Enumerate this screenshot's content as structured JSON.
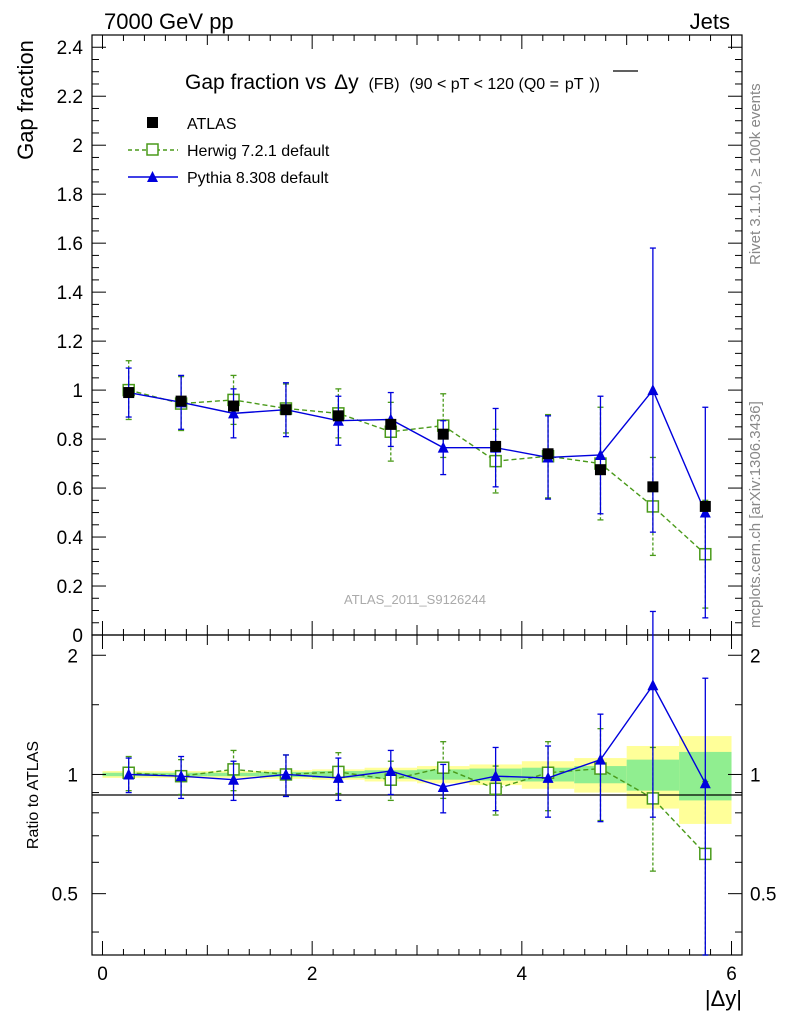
{
  "header": {
    "left": "7000 GeV pp",
    "right": "Jets"
  },
  "side_labels": {
    "rivet": "Rivet 3.1.10, ≥ 100k events",
    "mcplots": "mcplots.cern.ch [arXiv:1306.3436]"
  },
  "watermark": "ATLAS_2011_S9126244",
  "colors": {
    "atlas": "#000000",
    "herwig": "#4a9a1a",
    "pythia": "#0000dd",
    "band_inner": "#90ee90",
    "band_outer": "#ffff99"
  },
  "chart_data": [
    {
      "type": "scatter",
      "title_main": "Gap fraction vs",
      "title_delta": "Δy",
      "title_tag": "(FB)",
      "title_range": "(90 < pT < 120 (Q0 =",
      "title_q0": "pT",
      "title_close": "))",
      "ylabel": "Gap fraction",
      "ylim": [
        0,
        2.45
      ],
      "yticks": [
        "0",
        "0.2",
        "0.4",
        "0.6",
        "0.8",
        "1",
        "1.2",
        "1.4",
        "1.6",
        "1.8",
        "2",
        "2.2",
        "2.4"
      ],
      "x": [
        0.25,
        0.75,
        1.25,
        1.75,
        2.25,
        2.75,
        3.25,
        3.75,
        4.25,
        4.75,
        5.25,
        5.75
      ],
      "series": [
        {
          "name": "ATLAS",
          "values": [
            0.99,
            0.955,
            0.935,
            0.92,
            0.895,
            0.86,
            0.82,
            0.77,
            0.74,
            0.675,
            0.605,
            0.525
          ]
        },
        {
          "name": "Herwig 7.2.1 default",
          "values": [
            1.0,
            0.945,
            0.96,
            0.925,
            0.905,
            0.83,
            0.855,
            0.71,
            0.73,
            0.7,
            0.525,
            0.33
          ],
          "err": [
            0.12,
            0.11,
            0.1,
            0.1,
            0.1,
            0.12,
            0.13,
            0.13,
            0.17,
            0.23,
            0.2,
            0.22
          ]
        },
        {
          "name": "Pythia 8.308 default",
          "values": [
            0.99,
            0.95,
            0.905,
            0.92,
            0.875,
            0.88,
            0.765,
            0.765,
            0.725,
            0.735,
            1.0,
            0.5
          ],
          "err": [
            0.1,
            0.11,
            0.1,
            0.11,
            0.1,
            0.11,
            0.11,
            0.16,
            0.17,
            0.24,
            0.58,
            0.43
          ]
        }
      ]
    },
    {
      "type": "scatter",
      "ylabel": "Ratio to ATLAS",
      "xlabel": "|Δy|",
      "ylim": [
        0.35,
        2.25
      ],
      "log_y": true,
      "xlim": [
        -0.1,
        6.1
      ],
      "xticks": [
        "0",
        "2",
        "4",
        "6"
      ],
      "yticks": [
        "0.5",
        "1",
        "2"
      ],
      "x": [
        0.25,
        0.75,
        1.25,
        1.75,
        2.25,
        2.75,
        3.25,
        3.75,
        4.25,
        4.75,
        5.25,
        5.75
      ],
      "band_inner": [
        0.01,
        0.01,
        0.01,
        0.015,
        0.02,
        0.025,
        0.03,
        0.035,
        0.04,
        0.05,
        0.09,
        0.14
      ],
      "band_outer": [
        0.02,
        0.02,
        0.02,
        0.025,
        0.03,
        0.04,
        0.05,
        0.06,
        0.08,
        0.1,
        0.18,
        0.25
      ],
      "series": [
        {
          "name": "Herwig 7.2.1 default",
          "values": [
            1.01,
            0.99,
            1.03,
            1.0,
            1.015,
            0.97,
            1.04,
            0.92,
            1.01,
            1.035,
            0.87,
            0.63
          ],
          "err": [
            0.1,
            0.1,
            0.12,
            0.12,
            0.12,
            0.11,
            0.17,
            0.13,
            0.2,
            0.27,
            0.3,
            0.33
          ]
        },
        {
          "name": "Pythia 8.308 default",
          "values": [
            1.0,
            0.99,
            0.97,
            1.0,
            0.98,
            1.02,
            0.93,
            0.99,
            0.98,
            1.09,
            1.68,
            0.95
          ],
          "err": [
            0.1,
            0.12,
            0.11,
            0.12,
            0.12,
            0.13,
            0.13,
            0.18,
            0.2,
            0.33,
            0.9,
            0.8
          ]
        }
      ]
    }
  ]
}
